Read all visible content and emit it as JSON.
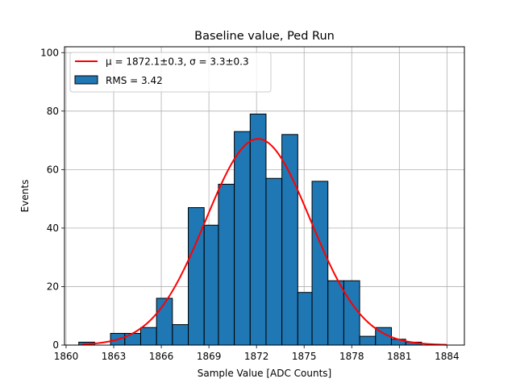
{
  "chart_data": {
    "type": "bar",
    "title": "Baseline value, Ped Run",
    "xlabel": "Sample Value [ADC Counts]",
    "ylabel": "Events",
    "xlim": [
      1859.9,
      1885.1
    ],
    "ylim": [
      0,
      102
    ],
    "grid": true,
    "legend_position": "top-left",
    "xticks": [
      1860,
      1863,
      1866,
      1869,
      1872,
      1875,
      1878,
      1881,
      1884
    ],
    "yticks": [
      0,
      20,
      40,
      60,
      80,
      100
    ],
    "bin_edges": [
      1860.8,
      1861.8,
      1862.8,
      1863.7,
      1864.7,
      1865.7,
      1866.7,
      1867.7,
      1868.7,
      1869.6,
      1870.6,
      1871.6,
      1872.6,
      1873.6,
      1874.6,
      1875.5,
      1876.5,
      1877.5,
      1878.5,
      1879.5,
      1880.5,
      1881.4,
      1882.4,
      1883.4,
      1884.4
    ],
    "counts": [
      1,
      0,
      4,
      4,
      6,
      16,
      7,
      47,
      41,
      55,
      73,
      79,
      57,
      72,
      18,
      56,
      22,
      22,
      3,
      6,
      2,
      1,
      0,
      0
    ],
    "histogram_name": "RMS = 3.42",
    "fit": {
      "name": "μ = 1872.1±0.3, σ = 3.3±0.3",
      "mu": 1872.1,
      "sigma": 3.3,
      "amplitude": 70.5,
      "x_range": [
        1861,
        1884
      ]
    },
    "colors": {
      "bar_fill": "#1f77b4",
      "bar_edge": "#000000",
      "fit_line": "#ff0000",
      "grid": "#b0b0b0"
    }
  }
}
